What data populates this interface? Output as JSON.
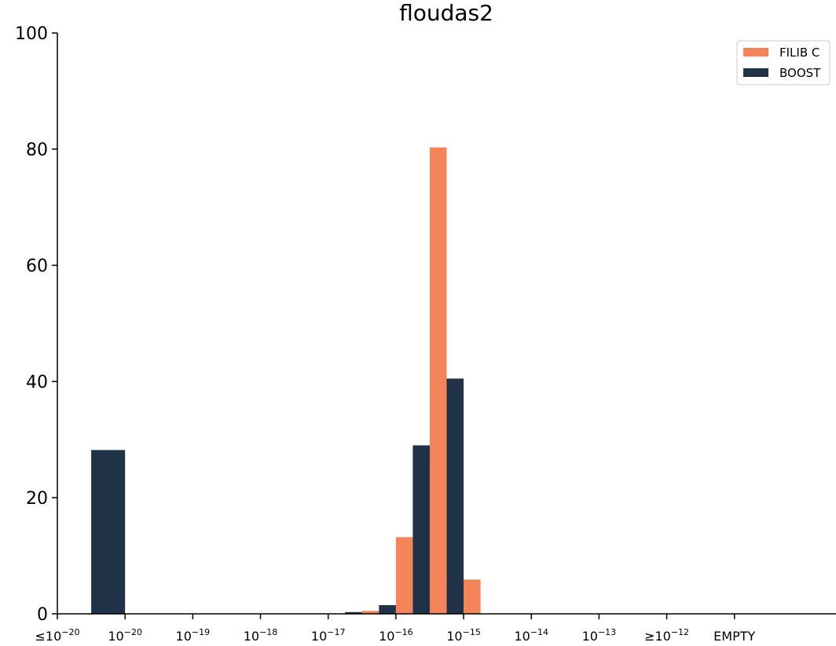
{
  "chart_data": {
    "type": "bar",
    "title": "floudas2",
    "xlim": [
      0,
      11.5
    ],
    "xticks": [
      {
        "value": 0,
        "label": "≤10",
        "exponent": "−20"
      },
      {
        "value": 1,
        "label": "10",
        "exponent": "−20"
      },
      {
        "value": 2,
        "label": "10",
        "exponent": "−19"
      },
      {
        "value": 3,
        "label": "10",
        "exponent": "−18"
      },
      {
        "value": 4,
        "label": "10",
        "exponent": "−17"
      },
      {
        "value": 5,
        "label": "10",
        "exponent": "−16"
      },
      {
        "value": 6,
        "label": "10",
        "exponent": "−15"
      },
      {
        "value": 7,
        "label": "10",
        "exponent": "−14"
      },
      {
        "value": 8,
        "label": "10",
        "exponent": "−13"
      },
      {
        "value": 9,
        "label": "≥10",
        "exponent": "−12"
      },
      {
        "value": 10,
        "label": "EMPTY"
      }
    ],
    "ylim": [
      0,
      100
    ],
    "yticks": [
      0,
      20,
      40,
      60,
      80,
      100
    ],
    "legend": "upper right",
    "series": [
      {
        "name": "FILIB C",
        "color": "#f5845a",
        "x_start": [
          4.5,
          5.0,
          5.5,
          6.0
        ],
        "x_end": [
          4.75,
          5.25,
          5.75,
          6.25
        ],
        "values": [
          0.5,
          13.2,
          80.3,
          5.9
        ]
      },
      {
        "name": "BOOST",
        "color": "#1f3247",
        "x_start": [
          0.5,
          4.25,
          4.75,
          5.25,
          5.75
        ],
        "x_end": [
          1.0,
          4.5,
          5.0,
          5.5,
          6.0
        ],
        "values": [
          28.2,
          0.3,
          1.5,
          29,
          40.5
        ]
      }
    ]
  }
}
